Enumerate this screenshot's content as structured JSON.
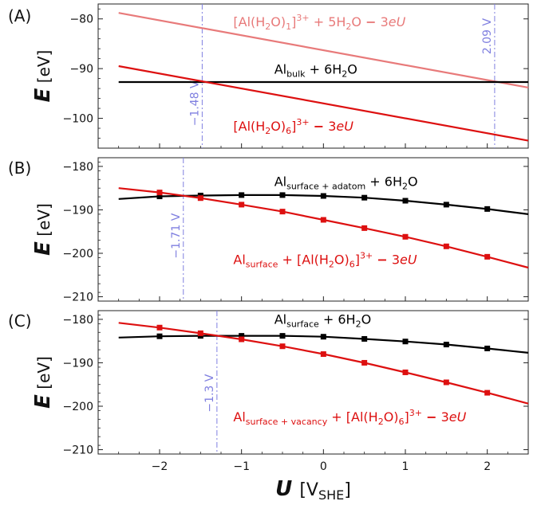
{
  "chart_data": [
    {
      "type": "line",
      "panel_label": "(A)",
      "ylabel_symbol": "E",
      "ylabel_unit": "[eV]",
      "xlim": [
        -2.75,
        2.5
      ],
      "ylim": [
        -106,
        -77
      ],
      "y_ticks": [
        -80,
        -90,
        -100
      ],
      "y_tick_labels": [
        "−80",
        "−90",
        "−100"
      ],
      "series": [
        {
          "color": "#e87a7a",
          "x": [
            -2.5,
            2.5
          ],
          "y": [
            -78.8,
            -93.8
          ],
          "markers": false
        },
        {
          "color": "#000000",
          "x": [
            -2.5,
            2.5
          ],
          "y": [
            -92.7,
            -92.7
          ],
          "markers": false
        },
        {
          "color": "#dd1010",
          "x": [
            -2.5,
            2.5
          ],
          "y": [
            -89.5,
            -104.5
          ],
          "markers": false
        }
      ],
      "vlines": [
        {
          "x": -1.48,
          "label": "−1.48 V",
          "label_y": -97
        },
        {
          "x": 2.09,
          "label": "2.09 V",
          "label_y": -83.5
        }
      ],
      "annotations": [
        {
          "color": "#e87a7a",
          "x": -1.1,
          "y": -81.5,
          "parts": [
            [
              "text",
              "[Al(H"
            ],
            [
              "sub",
              "2"
            ],
            [
              "text",
              "O)"
            ],
            [
              "sub",
              "1"
            ],
            [
              "text",
              "]"
            ],
            [
              "sup",
              "3+"
            ],
            [
              "text",
              " + 5H"
            ],
            [
              "sub",
              "2"
            ],
            [
              "text",
              "O "
            ],
            [
              "b",
              "−"
            ],
            [
              "text",
              " 3"
            ],
            [
              "i",
              "eU"
            ]
          ]
        },
        {
          "color": "#000000",
          "x": -0.6,
          "y": -91,
          "parts": [
            [
              "text",
              "Al"
            ],
            [
              "sub",
              "bulk"
            ],
            [
              "text",
              " + 6H"
            ],
            [
              "sub",
              "2"
            ],
            [
              "text",
              "O"
            ]
          ]
        },
        {
          "color": "#dd1010",
          "x": -1.1,
          "y": -102.5,
          "parts": [
            [
              "text",
              "[Al(H"
            ],
            [
              "sub",
              "2"
            ],
            [
              "text",
              "O)"
            ],
            [
              "sub",
              "6"
            ],
            [
              "text",
              "]"
            ],
            [
              "sup",
              "3+"
            ],
            [
              "text",
              " "
            ],
            [
              "b",
              "−"
            ],
            [
              "text",
              " 3"
            ],
            [
              "i",
              "eU"
            ]
          ]
        }
      ]
    },
    {
      "type": "line",
      "panel_label": "(B)",
      "ylabel_symbol": "E",
      "ylabel_unit": "[eV]",
      "xlim": [
        -2.75,
        2.5
      ],
      "ylim": [
        -211,
        -178
      ],
      "y_ticks": [
        -180,
        -190,
        -200,
        -210
      ],
      "y_tick_labels": [
        "−180",
        "−190",
        "−200",
        "−210"
      ],
      "series": [
        {
          "color": "#000000",
          "x": [
            -2.5,
            -2,
            -1.5,
            -1,
            -0.5,
            0,
            0.5,
            1,
            1.5,
            2,
            2.5
          ],
          "y": [
            -187.5,
            -186.9,
            -186.7,
            -186.6,
            -186.6,
            -186.8,
            -187.2,
            -187.9,
            -188.8,
            -189.8,
            -191.0
          ],
          "markers": true
        },
        {
          "color": "#dd1010",
          "x": [
            -2.5,
            -2,
            -1.5,
            -1,
            -0.5,
            0,
            0.5,
            1,
            1.5,
            2,
            2.5
          ],
          "y": [
            -185.0,
            -186.0,
            -187.3,
            -188.8,
            -190.4,
            -192.3,
            -194.2,
            -196.2,
            -198.4,
            -200.8,
            -203.3
          ],
          "markers": true
        }
      ],
      "vlines": [
        {
          "x": -1.71,
          "label": "−1.71 V",
          "label_y": -196
        }
      ],
      "annotations": [
        {
          "color": "#000000",
          "x": -0.6,
          "y": -184.5,
          "parts": [
            [
              "text",
              "Al"
            ],
            [
              "sub",
              "surface + adatom"
            ],
            [
              "text",
              " + 6H"
            ],
            [
              "sub",
              "2"
            ],
            [
              "text",
              "O"
            ]
          ]
        },
        {
          "color": "#dd1010",
          "x": -1.1,
          "y": -202.5,
          "parts": [
            [
              "text",
              "Al"
            ],
            [
              "sub",
              "surface"
            ],
            [
              "text",
              " + [Al(H"
            ],
            [
              "sub",
              "2"
            ],
            [
              "text",
              "O)"
            ],
            [
              "sub",
              "6"
            ],
            [
              "text",
              "]"
            ],
            [
              "sup",
              "3+"
            ],
            [
              "text",
              " "
            ],
            [
              "b",
              "−"
            ],
            [
              "text",
              " 3"
            ],
            [
              "i",
              "eU"
            ]
          ]
        }
      ]
    },
    {
      "type": "line",
      "panel_label": "(C)",
      "ylabel_symbol": "E",
      "ylabel_unit": "[eV]",
      "xlabel_symbol": "U",
      "xlabel_unit_main": "[V",
      "xlabel_unit_sub": "SHE",
      "xlabel_unit_end": "]",
      "xlim": [
        -2.75,
        2.5
      ],
      "ylim": [
        -211,
        -178
      ],
      "y_ticks": [
        -180,
        -190,
        -200,
        -210
      ],
      "y_tick_labels": [
        "−180",
        "−190",
        "−200",
        "−210"
      ],
      "x_ticks": [
        -2,
        -1,
        0,
        1,
        2
      ],
      "x_tick_labels": [
        "−2",
        "−1",
        "0",
        "1",
        "2"
      ],
      "series": [
        {
          "color": "#000000",
          "x": [
            -2.5,
            -2,
            -1.5,
            -1,
            -0.5,
            0,
            0.5,
            1,
            1.5,
            2,
            2.5
          ],
          "y": [
            -184.2,
            -183.9,
            -183.8,
            -183.8,
            -183.8,
            -184.0,
            -184.5,
            -185.1,
            -185.8,
            -186.7,
            -187.7
          ],
          "markers": true
        },
        {
          "color": "#dd1010",
          "x": [
            -2.5,
            -2,
            -1.5,
            -1,
            -0.5,
            0,
            0.5,
            1,
            1.5,
            2,
            2.5
          ],
          "y": [
            -180.8,
            -181.9,
            -183.2,
            -184.6,
            -186.2,
            -188.0,
            -190.0,
            -192.2,
            -194.5,
            -196.9,
            -199.4
          ],
          "markers": true
        }
      ],
      "vlines": [
        {
          "x": -1.3,
          "label": "−1.3 V",
          "label_y": -197
        }
      ],
      "annotations": [
        {
          "color": "#000000",
          "x": -0.6,
          "y": -181,
          "parts": [
            [
              "text",
              "Al"
            ],
            [
              "sub",
              "surface"
            ],
            [
              "text",
              " + 6H"
            ],
            [
              "sub",
              "2"
            ],
            [
              "text",
              "O"
            ]
          ]
        },
        {
          "color": "#dd1010",
          "x": -1.1,
          "y": -203.5,
          "parts": [
            [
              "text",
              "Al"
            ],
            [
              "sub",
              "surface + vacancy"
            ],
            [
              "text",
              " + [Al(H"
            ],
            [
              "sub",
              "2"
            ],
            [
              "text",
              "O)"
            ],
            [
              "sub",
              "6"
            ],
            [
              "text",
              "]"
            ],
            [
              "sup",
              "3+"
            ],
            [
              "text",
              " "
            ],
            [
              "b",
              "−"
            ],
            [
              "text",
              " 3"
            ],
            [
              "i",
              "eU"
            ]
          ]
        }
      ]
    }
  ]
}
